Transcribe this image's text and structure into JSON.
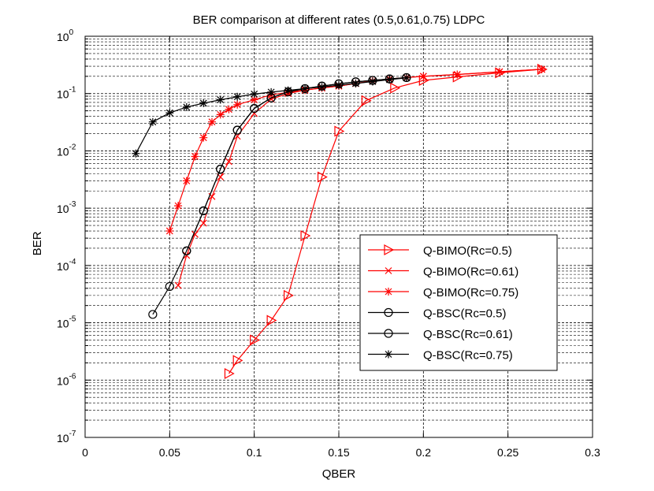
{
  "chart_data": {
    "type": "line",
    "title": "BER comparison at different rates (0.5,0.61,0.75) LDPC",
    "xlabel": "QBER",
    "ylabel": "BER",
    "xlim": [
      0,
      0.3
    ],
    "ylim_log10": [
      -7,
      0
    ],
    "y_scale": "log",
    "grid": true,
    "legend_position": "bottom-right",
    "x_ticks": [
      {
        "value": 0,
        "label": "0"
      },
      {
        "value": 0.05,
        "label": "0.05"
      },
      {
        "value": 0.1,
        "label": "0.1"
      },
      {
        "value": 0.15,
        "label": "0.15"
      },
      {
        "value": 0.2,
        "label": "0.2"
      },
      {
        "value": 0.25,
        "label": "0.25"
      },
      {
        "value": 0.3,
        "label": "0.3"
      }
    ],
    "y_ticks": [
      {
        "exp": 0,
        "base": "10",
        "sup": "0"
      },
      {
        "exp": -1,
        "base": "10",
        "sup": "-1"
      },
      {
        "exp": -2,
        "base": "10",
        "sup": "-2"
      },
      {
        "exp": -3,
        "base": "10",
        "sup": "-3"
      },
      {
        "exp": -4,
        "base": "10",
        "sup": "-4"
      },
      {
        "exp": -5,
        "base": "10",
        "sup": "-5"
      },
      {
        "exp": -6,
        "base": "10",
        "sup": "-6"
      },
      {
        "exp": -7,
        "base": "10",
        "sup": "-7"
      }
    ],
    "series": [
      {
        "name": "Q-BIMO(Rc=0.5)",
        "color": "#ff0000",
        "marker": "triangle-right",
        "x": [
          0.085,
          0.09,
          0.1,
          0.11,
          0.12,
          0.13,
          0.14,
          0.15,
          0.166,
          0.183,
          0.2,
          0.22,
          0.245,
          0.27
        ],
        "y": [
          1.3e-06,
          2.2e-06,
          5e-06,
          1.1e-05,
          3e-05,
          0.00033,
          0.0035,
          0.022,
          0.075,
          0.125,
          0.17,
          0.195,
          0.23,
          0.265
        ]
      },
      {
        "name": "Q-BIMO(Rc=0.61)",
        "color": "#ff0000",
        "marker": "x",
        "x": [
          0.055,
          0.06,
          0.065,
          0.07,
          0.075,
          0.08,
          0.085,
          0.09,
          0.1,
          0.11,
          0.12,
          0.13,
          0.14,
          0.15,
          0.16,
          0.17,
          0.18,
          0.19,
          0.2,
          0.22,
          0.245,
          0.27
        ],
        "y": [
          4.5e-05,
          0.00015,
          0.00035,
          0.00055,
          0.0016,
          0.0035,
          0.0065,
          0.018,
          0.045,
          0.08,
          0.1,
          0.115,
          0.125,
          0.135,
          0.15,
          0.165,
          0.18,
          0.19,
          0.2,
          0.215,
          0.24,
          0.265
        ]
      },
      {
        "name": "Q-BIMO(Rc=0.75)",
        "color": "#ff0000",
        "marker": "asterisk",
        "x": [
          0.05,
          0.055,
          0.06,
          0.065,
          0.07,
          0.075,
          0.08,
          0.085,
          0.09,
          0.1,
          0.11,
          0.12,
          0.13,
          0.14,
          0.15,
          0.16,
          0.17,
          0.18,
          0.19,
          0.2,
          0.22,
          0.245,
          0.27
        ],
        "y": [
          0.0004,
          0.0011,
          0.003,
          0.008,
          0.017,
          0.032,
          0.043,
          0.053,
          0.064,
          0.078,
          0.095,
          0.105,
          0.115,
          0.125,
          0.135,
          0.15,
          0.165,
          0.18,
          0.19,
          0.2,
          0.215,
          0.24,
          0.265
        ]
      },
      {
        "name": "Q-BSC(Rc=0.5)",
        "color": "#000000",
        "marker": "circle",
        "x": [
          0.06,
          0.07,
          0.08,
          0.09,
          0.1,
          0.11,
          0.12,
          0.13,
          0.14,
          0.15,
          0.16,
          0.17,
          0.18,
          0.19
        ],
        "y": [
          0.00018,
          0.0009,
          0.0048,
          0.023,
          0.055,
          0.084,
          0.107,
          0.122,
          0.135,
          0.148,
          0.16,
          0.17,
          0.18,
          0.19
        ]
      },
      {
        "name": "Q-BSC(Rc=0.61)",
        "color": "#000000",
        "marker": "circle",
        "x": [
          0.04,
          0.05,
          0.06,
          0.07,
          0.08,
          0.09,
          0.1,
          0.11,
          0.12,
          0.13,
          0.14,
          0.15,
          0.16,
          0.17,
          0.18,
          0.19
        ],
        "y": [
          1.4e-05,
          4.3e-05,
          0.00018,
          0.0009,
          0.0048,
          0.023,
          0.055,
          0.084,
          0.107,
          0.122,
          0.135,
          0.148,
          0.16,
          0.17,
          0.18,
          0.19
        ]
      },
      {
        "name": "Q-BSC(Rc=0.75)",
        "color": "#000000",
        "marker": "asterisk",
        "x": [
          0.03,
          0.04,
          0.05,
          0.06,
          0.07,
          0.08,
          0.09,
          0.1,
          0.11,
          0.12,
          0.13,
          0.14,
          0.15,
          0.16,
          0.17,
          0.18,
          0.19
        ],
        "y": [
          0.009,
          0.032,
          0.046,
          0.058,
          0.068,
          0.078,
          0.088,
          0.098,
          0.106,
          0.114,
          0.122,
          0.13,
          0.14,
          0.15,
          0.162,
          0.175,
          0.188
        ]
      }
    ]
  },
  "colors": {
    "background": "#ffffff",
    "axes": "#000000",
    "grid": "#000000"
  }
}
